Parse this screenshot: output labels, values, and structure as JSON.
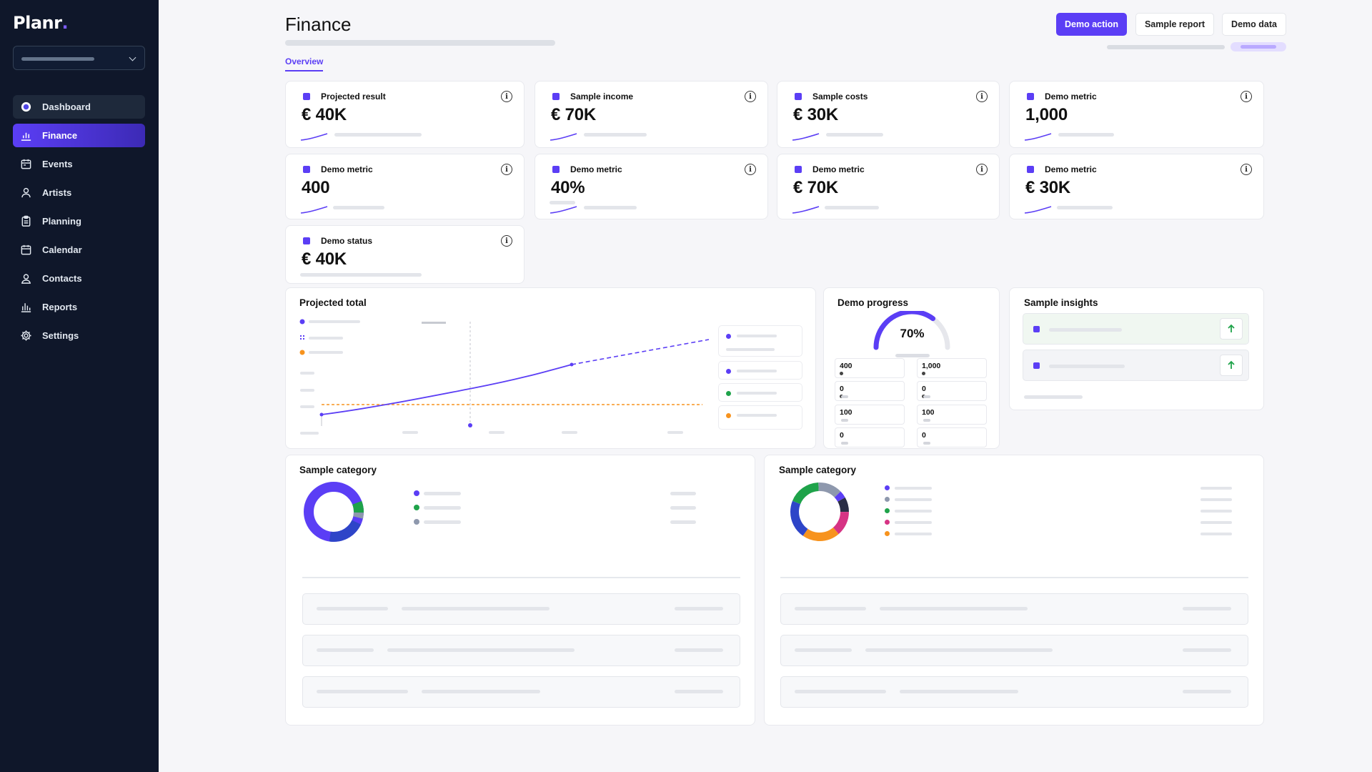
{
  "app": {
    "logo": "Planr",
    "logo_dot": "."
  },
  "sidebar": {
    "items": [
      {
        "label": "Dashboard",
        "icon": "circle-dot-icon"
      },
      {
        "label": "Finance",
        "icon": "bar-chart-icon"
      },
      {
        "label": "Events",
        "icon": "calendar-icon"
      },
      {
        "label": "Artists",
        "icon": "user-icon"
      },
      {
        "label": "Planning",
        "icon": "clipboard-icon"
      },
      {
        "label": "Calendar",
        "icon": "calendar-icon"
      },
      {
        "label": "Contacts",
        "icon": "contacts-icon"
      },
      {
        "label": "Reports",
        "icon": "reports-icon"
      },
      {
        "label": "Settings",
        "icon": "gear-icon"
      }
    ],
    "active": "Finance"
  },
  "header": {
    "title": "Finance",
    "tab": "Overview",
    "buttons": {
      "primary": "Demo action",
      "report": "Sample report",
      "data": "Demo data"
    }
  },
  "kpis": [
    {
      "label": "Projected result",
      "value": "€ 40K"
    },
    {
      "label": "Sample income",
      "value": "€ 70K"
    },
    {
      "label": "Sample costs",
      "value": "€ 30K"
    },
    {
      "label": "Demo metric",
      "value": "1,000"
    },
    {
      "label": "Demo metric",
      "value": "400"
    },
    {
      "label": "Demo metric",
      "value": "40%"
    },
    {
      "label": "Demo metric",
      "value": "€ 70K"
    },
    {
      "label": "Demo metric",
      "value": "€ 30K"
    },
    {
      "label": "Demo status",
      "value": "€ 40K"
    }
  ],
  "projected": {
    "title": "Projected total"
  },
  "progress": {
    "title": "Demo progress",
    "percent": "70%",
    "fraction": 0.7,
    "cells": [
      "400",
      "1,000",
      "0",
      "0",
      "100",
      "100",
      "0",
      "0"
    ]
  },
  "insights": {
    "title": "Sample insights"
  },
  "category_left": {
    "title": "Sample category"
  },
  "category_right": {
    "title": "Sample category"
  },
  "colors": {
    "accent": "#5b3ef5",
    "sidebar": "#0f172a",
    "orange": "#f7931e",
    "green": "#1fa34a",
    "pink": "#d63384",
    "gray": "#8e98ad"
  }
}
